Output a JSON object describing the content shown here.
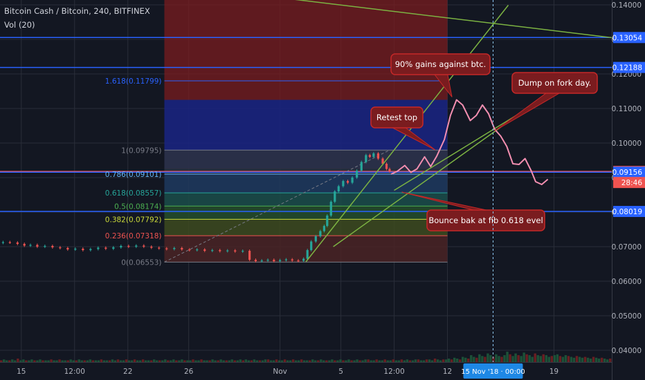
{
  "header": {
    "symbol_line": "Bitcoin Cash / Bitcoin, 240, BITFINEX",
    "indicator": "Vol (20)"
  },
  "colors": {
    "background": "#131722",
    "grid": "#2a2e39",
    "candle_up": "#26a69a",
    "candle_down": "#ef5350",
    "hline": "#2962ff",
    "trendline": "#7cb342",
    "annotation_bg": "#7a1c1f",
    "annotation_border": "#c62828",
    "projection": "#f48fb1",
    "crosshair": "#90caf9"
  },
  "chart_data": {
    "type": "candlestick",
    "title": "Bitcoin Cash / Bitcoin, 240, BITFINEX",
    "y_axis": {
      "side": "right",
      "range": [
        0.0366,
        0.1414
      ],
      "ticks": [
        "0.14000",
        "0.13000",
        "0.12000",
        "0.11000",
        "0.10000",
        "0.09000",
        "0.08000",
        "0.07000",
        "0.06000",
        "0.05000",
        "0.04000"
      ],
      "tick_values": [
        0.14,
        0.13,
        0.12,
        0.11,
        0.1,
        0.09,
        0.08,
        0.07,
        0.06,
        0.05,
        0.04
      ]
    },
    "x_axis": {
      "range_days": [
        13.6,
        53.8
      ],
      "ticks": [
        {
          "label": "15",
          "day": 15
        },
        {
          "label": "12:00",
          "day": 18.5
        },
        {
          "label": "22",
          "day": 22
        },
        {
          "label": "26",
          "day": 26
        },
        {
          "label": "Nov",
          "day": 32
        },
        {
          "label": "5",
          "day": 36
        },
        {
          "label": "12:00",
          "day": 39.5
        },
        {
          "label": "12",
          "day": 43
        },
        {
          "label": "19",
          "day": 50
        }
      ],
      "crosshair_label": "15 Nov '18 · 00:00",
      "crosshair_day": 46
    },
    "price_path": [
      [
        13.6,
        0.0711
      ],
      [
        14.0,
        0.0713
      ],
      [
        14.5,
        0.0712
      ],
      [
        15.0,
        0.0708
      ],
      [
        15.4,
        0.0703
      ],
      [
        15.8,
        0.0705
      ],
      [
        16.3,
        0.07
      ],
      [
        16.8,
        0.0702
      ],
      [
        17.3,
        0.0698
      ],
      [
        17.8,
        0.0696
      ],
      [
        18.3,
        0.0692
      ],
      [
        18.8,
        0.0694
      ],
      [
        19.3,
        0.069
      ],
      [
        19.8,
        0.0693
      ],
      [
        20.3,
        0.0697
      ],
      [
        20.8,
        0.0694
      ],
      [
        21.3,
        0.0698
      ],
      [
        21.8,
        0.0702
      ],
      [
        22.3,
        0.07
      ],
      [
        22.8,
        0.0703
      ],
      [
        23.3,
        0.07
      ],
      [
        23.8,
        0.0697
      ],
      [
        24.3,
        0.0695
      ],
      [
        24.8,
        0.0693
      ],
      [
        25.3,
        0.0696
      ],
      [
        25.8,
        0.0692
      ],
      [
        26.3,
        0.069
      ],
      [
        26.8,
        0.0692
      ],
      [
        27.3,
        0.0688
      ],
      [
        27.8,
        0.069
      ],
      [
        28.3,
        0.0687
      ],
      [
        28.8,
        0.0689
      ],
      [
        29.3,
        0.0686
      ],
      [
        29.8,
        0.0688
      ],
      [
        30.2,
        0.0662
      ],
      [
        30.6,
        0.0658
      ],
      [
        31.0,
        0.066
      ],
      [
        31.4,
        0.0662
      ],
      [
        31.8,
        0.0658
      ],
      [
        32.2,
        0.0661
      ],
      [
        32.6,
        0.0663
      ],
      [
        33.0,
        0.066
      ],
      [
        33.4,
        0.0659
      ],
      [
        33.7,
        0.0665
      ],
      [
        33.9,
        0.069
      ],
      [
        34.2,
        0.0715
      ],
      [
        34.5,
        0.073
      ],
      [
        34.8,
        0.0745
      ],
      [
        35.0,
        0.076
      ],
      [
        35.2,
        0.079
      ],
      [
        35.5,
        0.083
      ],
      [
        35.7,
        0.086
      ],
      [
        36.0,
        0.0875
      ],
      [
        36.3,
        0.089
      ],
      [
        36.6,
        0.0885
      ],
      [
        36.9,
        0.09
      ],
      [
        37.2,
        0.092
      ],
      [
        37.5,
        0.0945
      ],
      [
        37.8,
        0.0965
      ],
      [
        38.0,
        0.096
      ],
      [
        38.3,
        0.097
      ],
      [
        38.6,
        0.0955
      ],
      [
        38.9,
        0.094
      ],
      [
        39.1,
        0.0925
      ],
      [
        39.3,
        0.0918
      ]
    ],
    "volume_axis_max": 180,
    "volume": [
      2,
      3,
      2,
      2,
      3,
      2,
      4,
      2,
      3,
      2,
      2,
      3,
      2,
      2,
      3,
      2,
      2,
      2,
      3,
      2,
      2,
      3,
      2,
      2,
      2,
      3,
      2,
      2,
      3,
      2,
      2,
      2,
      3,
      2,
      2,
      2,
      3,
      2,
      2,
      2,
      3,
      2,
      3,
      2,
      2,
      3,
      2,
      2,
      3,
      2,
      2,
      3,
      2,
      2,
      2,
      3,
      2,
      2,
      2,
      3,
      2,
      2,
      3,
      2,
      2,
      3,
      2,
      2,
      2,
      3,
      2,
      2,
      3,
      2,
      2,
      2,
      3,
      2,
      2,
      3,
      2,
      2,
      2,
      3,
      2,
      2,
      3,
      2,
      3,
      2,
      2,
      3,
      2,
      2,
      2,
      3,
      3,
      2,
      2,
      3,
      2,
      2,
      3,
      2,
      2,
      3,
      2,
      2,
      3,
      2,
      2,
      2,
      3,
      2,
      2,
      3,
      2,
      2,
      2,
      3,
      2,
      2,
      3,
      2,
      2,
      3,
      2,
      2,
      3,
      2,
      2,
      3,
      3,
      2,
      2,
      3,
      2,
      2,
      3,
      2,
      2,
      3,
      2,
      2,
      3,
      2,
      3,
      2,
      2,
      3,
      3,
      2,
      2,
      3,
      3,
      2,
      4,
      3,
      2,
      3,
      3,
      4,
      3,
      5,
      4,
      3,
      6,
      5,
      4,
      8,
      6,
      5,
      9,
      7,
      6,
      10,
      8,
      6,
      9,
      7,
      6,
      8,
      12,
      9,
      7,
      10,
      8,
      7,
      11,
      9,
      8,
      6,
      10,
      8,
      7,
      9,
      8,
      6,
      7,
      8,
      9,
      7,
      6,
      8,
      7,
      6,
      5,
      7,
      6,
      5,
      6,
      5,
      4,
      6,
      5,
      4,
      5,
      4,
      3,
      4
    ],
    "horizontal_lines": [
      {
        "value": 0.13054,
        "label": "0.13054",
        "color": "#2962ff"
      },
      {
        "value": 0.12188,
        "label": "0.12188",
        "color": "#2962ff"
      },
      {
        "value": 0.09177,
        "label": "0.09177",
        "color": "#ef5350"
      },
      {
        "value": 0.09156,
        "label": "0.09156",
        "color": "#2962ff"
      },
      {
        "value": 0.08019,
        "label": "0.08019",
        "color": "#2962ff"
      }
    ],
    "countdown_label": "28:46",
    "fibonacci": {
      "x_start_day": 24.4,
      "x_end_day": 43.0,
      "levels": [
        {
          "ratio": "1.618",
          "value": 0.11799,
          "label": "1.618(0.11799)",
          "color": "#2962ff"
        },
        {
          "ratio": "1",
          "value": 0.09795,
          "label": "1(0.09795)",
          "color": "#787b86"
        },
        {
          "ratio": "0.786",
          "value": 0.09101,
          "label": "0.786(0.09101)",
          "color": "#64b5f6"
        },
        {
          "ratio": "0.618",
          "value": 0.08557,
          "label": "0.618(0.08557)",
          "color": "#26a69a"
        },
        {
          "ratio": "0.5",
          "value": 0.08174,
          "label": "0.5(0.08174)",
          "color": "#4caf50"
        },
        {
          "ratio": "0.382",
          "value": 0.07792,
          "label": "0.382(0.07792)",
          "color": "#cddc39"
        },
        {
          "ratio": "0.236",
          "value": 0.07318,
          "label": "0.236(0.07318)",
          "color": "#ef5350"
        },
        {
          "ratio": "0",
          "value": 0.06553,
          "label": "0(0.06553)",
          "color": "#787b86"
        }
      ]
    },
    "trendlines": [
      {
        "from": [
          24.4,
          0.1461
        ],
        "to": [
          53.8,
          0.1305
        ]
      },
      {
        "from": [
          33.7,
          0.0656
        ],
        "to": [
          47.0,
          0.1399
        ]
      },
      {
        "from": [
          35.5,
          0.07
        ],
        "to": [
          48.0,
          0.1093
        ]
      },
      {
        "from": [
          39.5,
          0.0863
        ],
        "to": [
          48.0,
          0.1093
        ]
      }
    ],
    "projection_path": [
      [
        39.3,
        0.091
      ],
      [
        39.7,
        0.0918
      ],
      [
        40.2,
        0.0935
      ],
      [
        40.6,
        0.0915
      ],
      [
        41.0,
        0.0925
      ],
      [
        41.5,
        0.096
      ],
      [
        41.9,
        0.0932
      ],
      [
        42.3,
        0.0962
      ],
      [
        42.8,
        0.101
      ],
      [
        43.2,
        0.108
      ],
      [
        43.6,
        0.1125
      ],
      [
        44.0,
        0.111
      ],
      [
        44.5,
        0.1065
      ],
      [
        44.9,
        0.108
      ],
      [
        45.3,
        0.111
      ],
      [
        45.7,
        0.1085
      ],
      [
        46.1,
        0.104
      ],
      [
        46.5,
        0.102
      ],
      [
        46.9,
        0.099
      ],
      [
        47.3,
        0.094
      ],
      [
        47.7,
        0.0938
      ],
      [
        48.1,
        0.0955
      ],
      [
        48.5,
        0.092
      ],
      [
        48.8,
        0.0888
      ],
      [
        49.2,
        0.088
      ],
      [
        49.6,
        0.0895
      ]
    ],
    "annotations": [
      {
        "text": "90% gains against btc.",
        "tail": [
          43.3,
          0.1133
        ]
      },
      {
        "text": "Retest top",
        "tail": [
          42.2,
          0.098
        ]
      },
      {
        "text": "Dump on fork day.",
        "tail": [
          46.1,
          0.1035
        ]
      },
      {
        "text": "Bounce bak at fib 0.618 evel",
        "tail": [
          40.0,
          0.0858
        ]
      }
    ]
  }
}
